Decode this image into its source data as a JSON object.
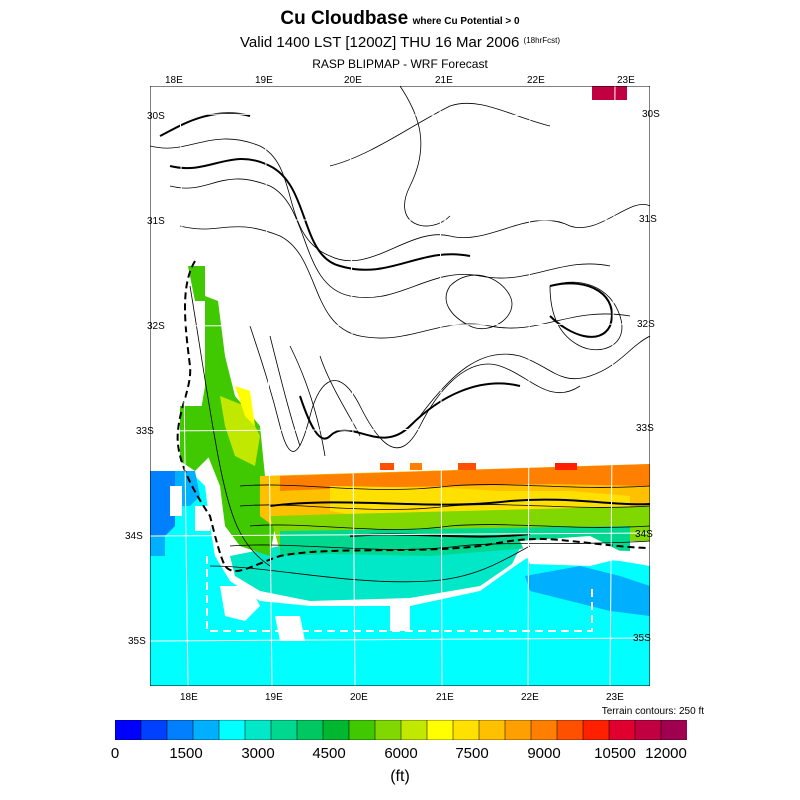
{
  "header": {
    "title": "Cu Cloudbase",
    "title_qualifier": "where Cu Potential > 0",
    "valid_line": "Valid 1400 LST [1200Z] THU 16 Mar 2006",
    "forecast_hours": "(18hrFcst)",
    "model_line": "RASP BLIPMAP - WRF Forecast"
  },
  "map": {
    "top_longitudes": [
      "18E",
      "19E",
      "20E",
      "21E",
      "22E",
      "23E"
    ],
    "bottom_longitudes": [
      "18E",
      "19E",
      "20E",
      "21E",
      "22E",
      "23E"
    ],
    "left_latitudes": [
      "30S",
      "31S",
      "32S",
      "33S",
      "34S",
      "35S"
    ],
    "right_latitudes": [
      "30S",
      "31S",
      "32S",
      "33S",
      "34S",
      "35S"
    ],
    "terrain_note": "Terrain contours: 250 ft"
  },
  "colorbar": {
    "labels": [
      "0",
      "1500",
      "3000",
      "4500",
      "6000",
      "7500",
      "9000",
      "10500",
      "12000"
    ],
    "units": "(ft)",
    "colors": [
      "#0000ff",
      "#0040ff",
      "#0080ff",
      "#00b0ff",
      "#00ffff",
      "#00e8c8",
      "#00d890",
      "#00c860",
      "#00b830",
      "#40c800",
      "#80d800",
      "#c0e800",
      "#ffff00",
      "#ffe000",
      "#ffc000",
      "#ffa000",
      "#ff8000",
      "#ff5000",
      "#ff2000",
      "#e00030",
      "#c00040",
      "#a00050"
    ]
  }
}
